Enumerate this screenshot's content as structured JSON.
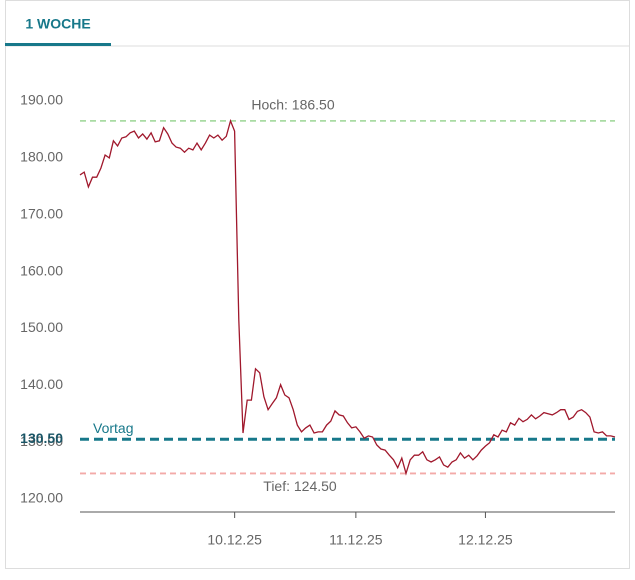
{
  "tab": "1 WOCHE",
  "chart_data": {
    "type": "line",
    "categories": [
      null,
      null,
      null,
      null,
      null,
      null,
      null,
      null,
      null,
      null,
      null,
      null,
      null,
      null,
      null,
      null,
      null,
      null,
      null,
      null,
      null,
      null,
      null,
      null,
      null,
      null,
      null,
      null,
      null,
      null,
      null,
      null,
      null,
      null,
      null,
      null,
      null,
      "10.12.25",
      null,
      null,
      null,
      null,
      null,
      null,
      null,
      null,
      null,
      null,
      null,
      null,
      null,
      null,
      null,
      null,
      null,
      null,
      null,
      null,
      null,
      null,
      null,
      null,
      null,
      null,
      null,
      null,
      "11.12.25",
      null,
      null,
      null,
      null,
      null,
      null,
      null,
      null,
      null,
      null,
      null,
      null,
      null,
      null,
      null,
      null,
      null,
      null,
      null,
      null,
      null,
      null,
      null,
      null,
      null,
      null,
      null,
      null,
      null,
      null,
      "12.12.25",
      null,
      null,
      null,
      null,
      null,
      null,
      null,
      null,
      null,
      null,
      null,
      null,
      null,
      null,
      null,
      null,
      null,
      null,
      null,
      null,
      null,
      null,
      null,
      null,
      null,
      null,
      null,
      null,
      null,
      null,
      null
    ],
    "series": [
      {
        "color": "#a0182c",
        "values": [
          177.0,
          177.5,
          174.9,
          176.6,
          176.6,
          178.2,
          180.5,
          180.0,
          183.0,
          182.1,
          183.5,
          183.7,
          184.4,
          184.7,
          183.5,
          184.2,
          183.3,
          184.4,
          182.8,
          183.0,
          185.3,
          184.2,
          182.6,
          181.9,
          181.7,
          181.0,
          181.7,
          181.4,
          182.6,
          181.4,
          182.6,
          184.0,
          183.5,
          184.0,
          183.1,
          183.8,
          186.5,
          184.7,
          151.5,
          131.6,
          137.4,
          137.4,
          142.9,
          142.2,
          138.0,
          135.7,
          136.8,
          137.8,
          140.1,
          138.3,
          137.8,
          135.7,
          133.0,
          131.8,
          132.5,
          133.0,
          131.6,
          131.8,
          131.8,
          133.0,
          133.7,
          135.5,
          134.8,
          134.6,
          133.4,
          132.5,
          132.7,
          131.8,
          130.7,
          131.1,
          130.9,
          129.5,
          128.8,
          128.6,
          127.7,
          126.9,
          125.5,
          127.2,
          124.5,
          126.9,
          127.7,
          127.7,
          128.3,
          126.9,
          126.5,
          126.9,
          127.4,
          126.0,
          125.6,
          126.5,
          126.9,
          128.1,
          127.2,
          127.7,
          126.9,
          127.6,
          128.6,
          129.3,
          129.9,
          131.3,
          130.9,
          132.1,
          131.8,
          133.4,
          133.0,
          134.2,
          133.6,
          134.0,
          134.8,
          134.1,
          134.6,
          135.2,
          135.0,
          134.8,
          135.2,
          135.7,
          135.7,
          134.0,
          134.4,
          135.4,
          135.7,
          135.2,
          134.4,
          131.8,
          131.6,
          131.8,
          131.1,
          131.1,
          130.9
        ]
      }
    ],
    "ylim": [
      120,
      190
    ],
    "yticks": [
      {
        "value": 120,
        "label": "120.00"
      },
      {
        "value": 130,
        "label": "130.00"
      },
      {
        "value": 140,
        "label": "140.00"
      },
      {
        "value": 150,
        "label": "150.00"
      },
      {
        "value": 160,
        "label": "160.00"
      },
      {
        "value": 170,
        "label": "170.00"
      },
      {
        "value": 180,
        "label": "180.00"
      },
      {
        "value": 190,
        "label": "190.00"
      }
    ],
    "reference_lines": [
      {
        "label": "Hoch: 186.50",
        "value": 186.5,
        "color": "#a9dba3"
      },
      {
        "label": "Tief: 124.50",
        "value": 124.5,
        "color": "#f3aaa8"
      },
      {
        "label": "Vortag",
        "value": 130.5,
        "value_label": "130.50",
        "color": "#17788a"
      }
    ]
  }
}
